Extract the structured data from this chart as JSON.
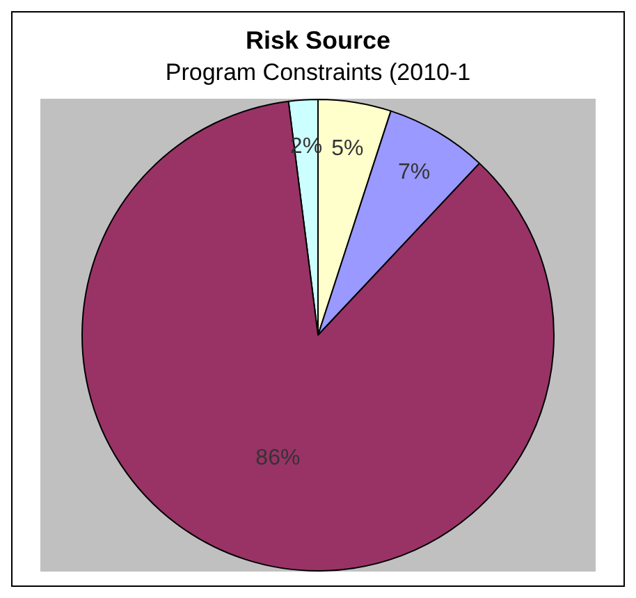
{
  "chart_data": {
    "type": "pie",
    "title": "Risk Source",
    "subtitle": "Program Constraints (2010-1",
    "categories": [
      null,
      null,
      null,
      null
    ],
    "values": [
      2,
      5,
      7,
      86
    ],
    "value_labels": [
      "2%",
      "5%",
      "7%",
      "86%"
    ],
    "colors": [
      "#ccffff",
      "#ffffcc",
      "#9999ff",
      "#993366"
    ],
    "legend": false
  }
}
